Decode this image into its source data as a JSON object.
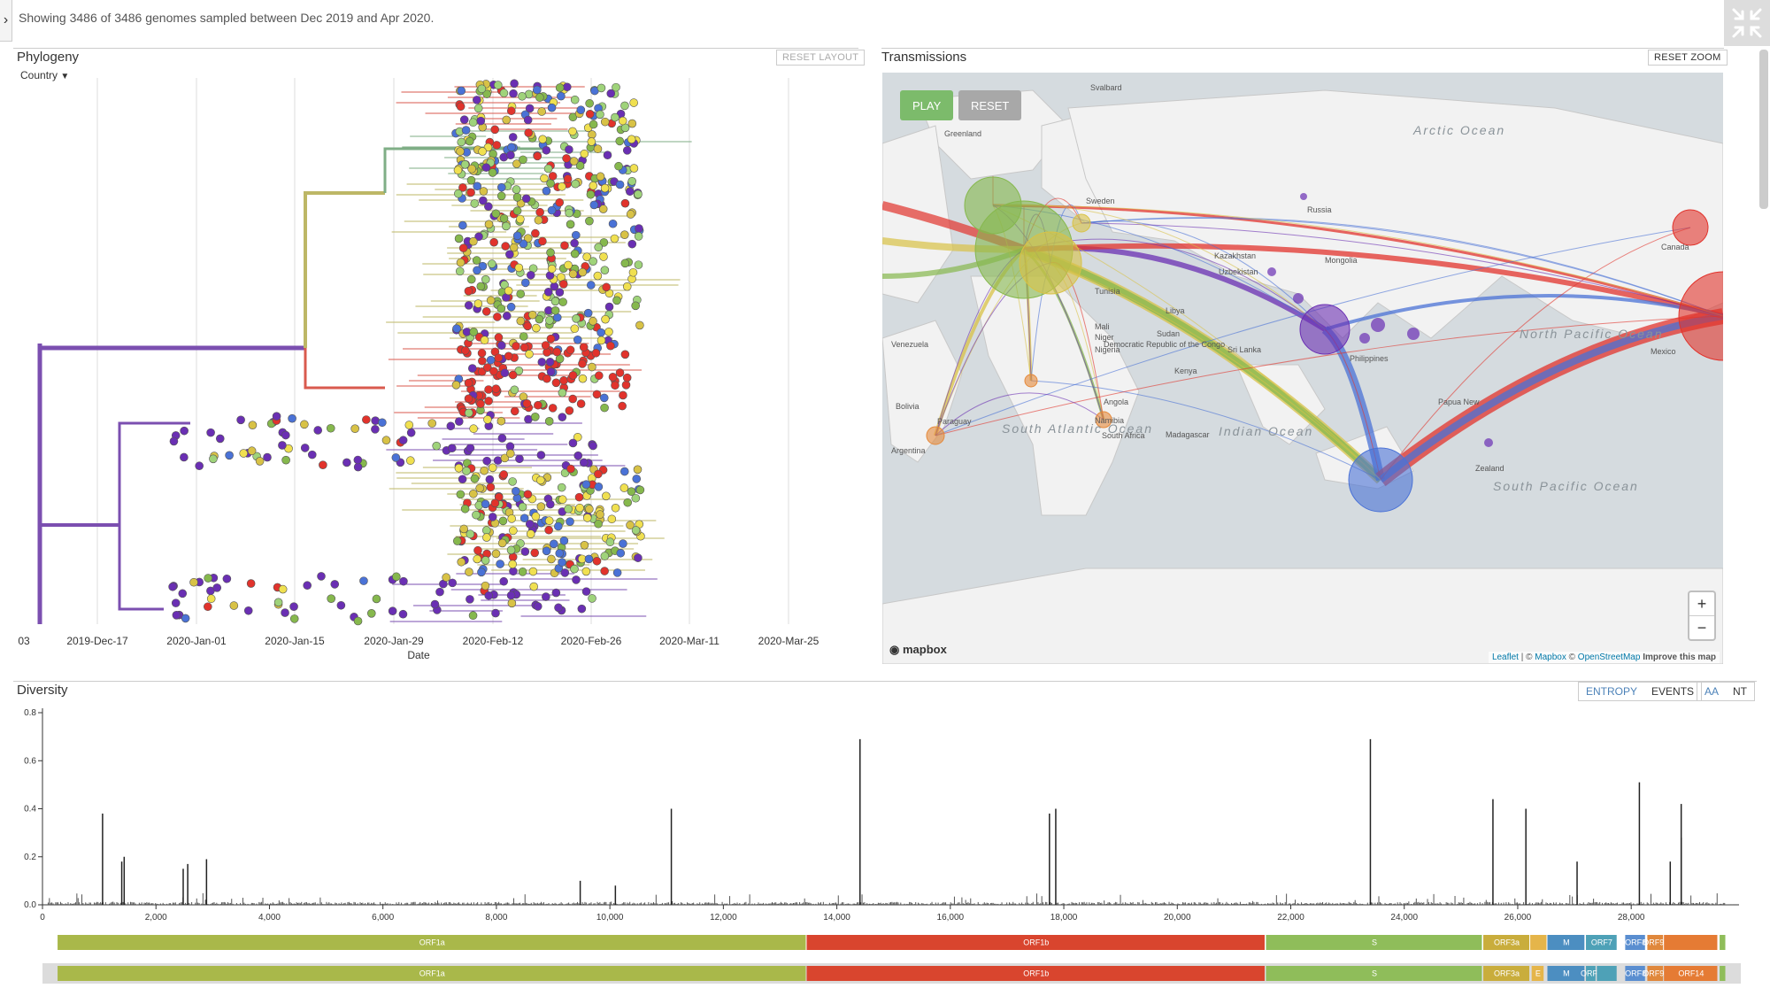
{
  "header": {
    "status": "Showing 3486 of 3486 genomes sampled between Dec 2019 and Apr 2020.",
    "sidebar_toggle": "›",
    "fullscreen_icon": "compress-icon"
  },
  "phylogeny": {
    "title": "Phylogeny",
    "reset_label": "RESET LAYOUT",
    "color_by": "Country",
    "axis_label": "Date",
    "ticks": [
      "03",
      "2019-Dec-17",
      "2020-Jan-01",
      "2020-Jan-15",
      "2020-Jan-29",
      "2020-Feb-12",
      "2020-Feb-26",
      "2020-Mar-11",
      "2020-Mar-25"
    ]
  },
  "transmissions": {
    "title": "Transmissions",
    "reset_zoom_label": "RESET ZOOM",
    "play_label": "PLAY",
    "reset_label": "RESET",
    "zoom_in": "+",
    "zoom_out": "−",
    "mapbox": "mapbox",
    "attribution": {
      "leaflet": "Leaflet",
      "sep1": " | © ",
      "mapbox": "Mapbox",
      "sep2": " © ",
      "osm": "OpenStreetMap",
      "improve": "Improve this map"
    },
    "labels": [
      "Svalbard",
      "Greenland",
      "Arctic Ocean",
      "Sweden",
      "Russia",
      "Kazakhstan",
      "Uzbekistan",
      "Mongolia",
      "Tunisia",
      "Libya",
      "Mali",
      "Niger",
      "Nigeria",
      "Sudan",
      "Venezuela",
      "Democratic Republic of the Congo",
      "Kenya",
      "Angola",
      "Namibia",
      "South Africa",
      "Madagascar",
      "Bolivia",
      "Paraguay",
      "Argentina",
      "South Atlantic Ocean",
      "Indian Ocean",
      "Sri Lanka",
      "Philippines",
      "Papua New",
      "Zealand",
      "Canada",
      "Mexico",
      "North Pacific Ocean",
      "South Pacific Ocean"
    ],
    "colors": {
      "purple": "#6a2fb3",
      "blue": "#4a72d6",
      "green": "#86b84d",
      "yellow": "#d8c246",
      "orange": "#e5893a",
      "red": "#e1332c"
    }
  },
  "diversity": {
    "title": "Diversity",
    "entropy_label": "ENTROPY",
    "events_label": "EVENTS",
    "aa_label": "AA",
    "nt_label": "NT",
    "y_ticks": [
      "0.0",
      "0.2",
      "0.4",
      "0.6",
      "0.8"
    ],
    "x_ticks": [
      "0",
      "2,000",
      "4,000",
      "6,000",
      "8,000",
      "10,000",
      "12,000",
      "14,000",
      "16,000",
      "18,000",
      "20,000",
      "22,000",
      "24,000",
      "26,000",
      "28,000"
    ],
    "genes_top": [
      {
        "name": "ORF1a",
        "start": 266,
        "end": 13468,
        "color": "#a9b84a"
      },
      {
        "name": "ORF1b",
        "start": 13468,
        "end": 21555,
        "color": "#d9452e"
      },
      {
        "name": "S",
        "start": 21563,
        "end": 25384,
        "color": "#8fbd5a"
      },
      {
        "name": "ORF3a",
        "start": 25393,
        "end": 26220,
        "color": "#c9ad3c"
      },
      {
        "name": "",
        "start": 26220,
        "end": 26523,
        "color": "#e5b54a"
      },
      {
        "name": "M",
        "start": 26523,
        "end": 27191,
        "color": "#4c8ec1"
      },
      {
        "name": "ORF7",
        "start": 27202,
        "end": 27759,
        "color": "#4ea1b7"
      },
      {
        "name": "ORF8",
        "start": 27894,
        "end": 28259,
        "color": "#5a8ed0"
      },
      {
        "name": "ORF9b",
        "start": 28284,
        "end": 28577,
        "color": "#e0883c"
      },
      {
        "name": "",
        "start": 28577,
        "end": 29533,
        "color": "#e57b34"
      },
      {
        "name": "",
        "start": 29558,
        "end": 29674,
        "color": "#8fbd5a"
      }
    ],
    "genes_bottom": [
      {
        "name": "ORF1a",
        "start": 266,
        "end": 13468,
        "color": "#a9b84a"
      },
      {
        "name": "ORF1b",
        "start": 13468,
        "end": 21555,
        "color": "#d9452e"
      },
      {
        "name": "S",
        "start": 21563,
        "end": 25384,
        "color": "#8fbd5a"
      },
      {
        "name": "ORF3a",
        "start": 25393,
        "end": 26220,
        "color": "#c9ad3c"
      },
      {
        "name": "E",
        "start": 26245,
        "end": 26472,
        "color": "#e5b54a"
      },
      {
        "name": "M",
        "start": 26523,
        "end": 27191,
        "color": "#4c8ec1"
      },
      {
        "name": "ORF6",
        "start": 27202,
        "end": 27387,
        "color": "#4ea1b7"
      },
      {
        "name": "",
        "start": 27394,
        "end": 27759,
        "color": "#4ea1b7"
      },
      {
        "name": "ORF8",
        "start": 27894,
        "end": 28259,
        "color": "#5a8ed0"
      },
      {
        "name": "ORF9b",
        "start": 28284,
        "end": 28577,
        "color": "#e0883c"
      },
      {
        "name": "ORF14",
        "start": 28577,
        "end": 29533,
        "color": "#e57b34"
      },
      {
        "name": "",
        "start": 29558,
        "end": 29674,
        "color": "#8fbd5a"
      }
    ]
  },
  "chart_data": {
    "type": "bar",
    "title": "Diversity",
    "xlabel": "",
    "ylabel": "",
    "xlim": [
      0,
      29900
    ],
    "ylim": [
      0,
      0.8
    ],
    "peaks": [
      {
        "x": 1059,
        "y": 0.38
      },
      {
        "x": 1397,
        "y": 0.18
      },
      {
        "x": 1440,
        "y": 0.2
      },
      {
        "x": 2480,
        "y": 0.15
      },
      {
        "x": 2560,
        "y": 0.17
      },
      {
        "x": 2891,
        "y": 0.19
      },
      {
        "x": 9477,
        "y": 0.1
      },
      {
        "x": 10097,
        "y": 0.08
      },
      {
        "x": 11083,
        "y": 0.4
      },
      {
        "x": 14408,
        "y": 0.69
      },
      {
        "x": 17747,
        "y": 0.38
      },
      {
        "x": 17858,
        "y": 0.4
      },
      {
        "x": 23403,
        "y": 0.69
      },
      {
        "x": 25563,
        "y": 0.44
      },
      {
        "x": 26144,
        "y": 0.4
      },
      {
        "x": 27046,
        "y": 0.18
      },
      {
        "x": 28144,
        "y": 0.51
      },
      {
        "x": 28688,
        "y": 0.18
      },
      {
        "x": 28881,
        "y": 0.42
      },
      {
        "x": 28882,
        "y": 0.28
      }
    ]
  }
}
